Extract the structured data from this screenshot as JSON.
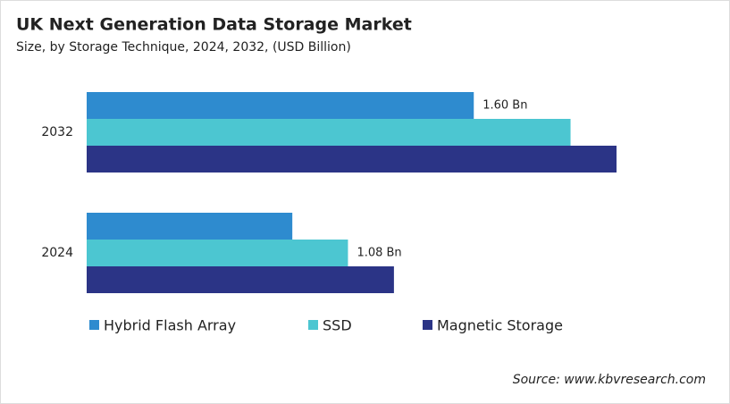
{
  "chart_data": {
    "type": "hbar",
    "title": "UK Next Generation Data Storage Market",
    "subtitle": "Size, by Storage Technique, 2024, 2032, (USD Billion)",
    "categories": [
      "2032",
      "2024"
    ],
    "series": [
      {
        "name": "Hybrid Flash Array",
        "color": "#2e8bcf",
        "values": [
          1.6,
          0.85
        ],
        "value_labels": [
          "1.60 Bn",
          null
        ]
      },
      {
        "name": "SSD",
        "color": "#4cc6d1",
        "values": [
          2.0,
          1.08
        ],
        "value_labels": [
          null,
          "1.08 Bn"
        ]
      },
      {
        "name": "Magnetic Storage",
        "color": "#2b3486",
        "values": [
          2.19,
          1.27
        ],
        "value_labels": [
          null,
          null
        ]
      }
    ],
    "source": "Source: www.kbvresearch.com"
  }
}
